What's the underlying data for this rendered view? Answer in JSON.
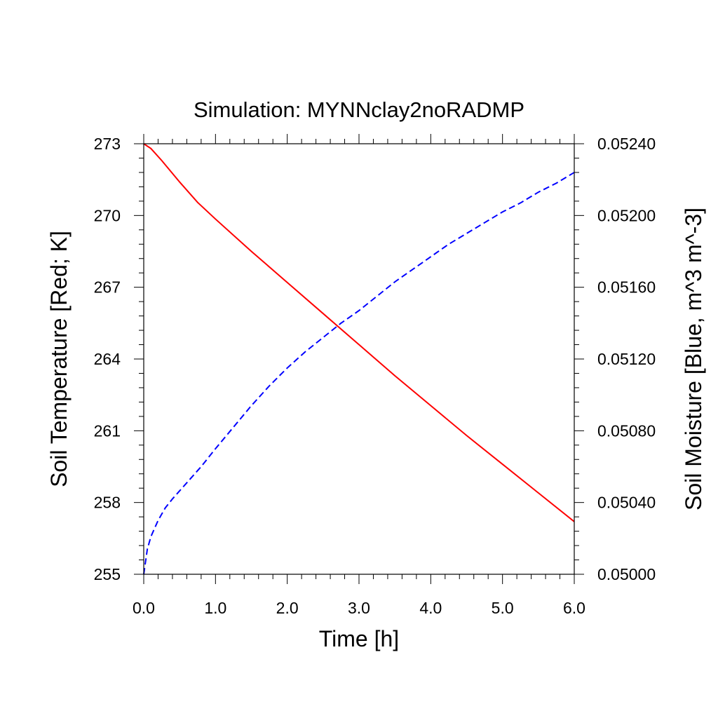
{
  "chart_data": {
    "type": "line",
    "title": "Simulation: MYNNclay2noRADMP",
    "xlabel": "Time [h]",
    "ylabel_left": "Soil Temperature [Red; K]",
    "ylabel_right": "Soil Moisture [Blue, m^3 m^-3]",
    "xlim": [
      0,
      6
    ],
    "ylim_left": [
      255,
      273
    ],
    "ylim_right": [
      0.05,
      0.0524
    ],
    "x_ticks": [
      0,
      1,
      2,
      3,
      4,
      5,
      6
    ],
    "x_tick_labels": [
      "0.0",
      "1.0",
      "2.0",
      "3.0",
      "4.0",
      "5.0",
      "6.0"
    ],
    "y_left_ticks": [
      255,
      258,
      261,
      264,
      267,
      270,
      273
    ],
    "y_left_tick_labels": [
      "255",
      "258",
      "261",
      "264",
      "267",
      "270",
      "273"
    ],
    "y_right_ticks": [
      0.05,
      0.0504,
      0.0508,
      0.0512,
      0.0516,
      0.052,
      0.0524
    ],
    "y_right_tick_labels": [
      "0.05000",
      "0.05040",
      "0.05080",
      "0.05120",
      "0.05160",
      "0.05200",
      "0.05240"
    ],
    "grid": false,
    "series": [
      {
        "axis": "left",
        "color": "#ff0000",
        "style": "solid",
        "x": [
          0,
          0.1,
          0.25,
          0.5,
          0.75,
          1.0,
          1.5,
          2.0,
          2.5,
          3.0,
          3.5,
          4.0,
          4.5,
          5.0,
          5.5,
          6.0
        ],
        "y": [
          273.0,
          272.8,
          272.3,
          271.4,
          270.55,
          269.85,
          268.5,
          267.2,
          265.9,
          264.6,
          263.3,
          262.05,
          260.8,
          259.6,
          258.4,
          257.2
        ]
      },
      {
        "axis": "right",
        "color": "#0000ff",
        "style": "dashed",
        "x": [
          0,
          0.05,
          0.1,
          0.2,
          0.3,
          0.4,
          0.6,
          0.8,
          1.0,
          1.25,
          1.5,
          1.75,
          2.0,
          2.25,
          2.5,
          2.75,
          3.0,
          3.25,
          3.5,
          3.75,
          4.0,
          4.25,
          4.5,
          4.75,
          5.0,
          5.25,
          5.5,
          5.75,
          6.0
        ],
        "y": [
          0.05,
          0.05014,
          0.05021,
          0.0503,
          0.05037,
          0.05042,
          0.05051,
          0.0506,
          0.0507,
          0.05082,
          0.05094,
          0.05105,
          0.05115,
          0.05124,
          0.05132,
          0.0514,
          0.05147,
          0.05155,
          0.05163,
          0.0517,
          0.05177,
          0.05184,
          0.0519,
          0.05196,
          0.05202,
          0.05207,
          0.05213,
          0.05218,
          0.05224
        ]
      }
    ]
  }
}
